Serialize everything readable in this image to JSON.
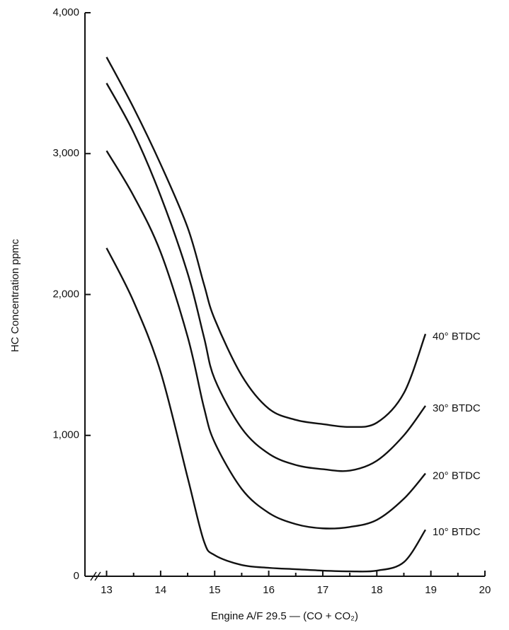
{
  "chart_data": {
    "type": "line",
    "ylabel": "HC Concentration ppmc",
    "xlabel": "Engine A/F 29.5 — (CO + CO₂)",
    "x": [
      13,
      13.5,
      14,
      14.5,
      14.8,
      15,
      15.5,
      16,
      16.5,
      17,
      17.5,
      18,
      18.5,
      18.9
    ],
    "series": [
      {
        "name": "40° BTDC",
        "color": "#111111",
        "values": [
          3685,
          3325,
          2925,
          2475,
          2075,
          1825,
          1425,
          1190,
          1110,
          1080,
          1060,
          1090,
          1300,
          1720
        ]
      },
      {
        "name": "30° BTDC",
        "color": "#111111",
        "values": [
          3500,
          3150,
          2700,
          2150,
          1700,
          1400,
          1050,
          870,
          790,
          760,
          750,
          820,
          1000,
          1210
        ]
      },
      {
        "name": "20° BTDC",
        "color": "#111111",
        "values": [
          3020,
          2700,
          2300,
          1700,
          1200,
          950,
          620,
          450,
          370,
          340,
          350,
          400,
          550,
          730
        ]
      },
      {
        "name": "10° BTDC",
        "color": "#111111",
        "values": [
          2330,
          1950,
          1450,
          700,
          250,
          150,
          80,
          60,
          50,
          40,
          35,
          40,
          100,
          330
        ]
      }
    ],
    "xlim": [
      12.6,
      20
    ],
    "xticks": [
      13,
      14,
      15,
      16,
      17,
      18,
      19,
      20
    ],
    "ylim": [
      0,
      4000
    ],
    "yticks": [
      0,
      {
        "value": 1000,
        "label": "1,000"
      },
      {
        "value": 2000,
        "label": "2,000"
      },
      {
        "value": 3000,
        "label": "3,000"
      },
      {
        "value": 4000,
        "label": "4,000"
      }
    ],
    "grid": false
  }
}
